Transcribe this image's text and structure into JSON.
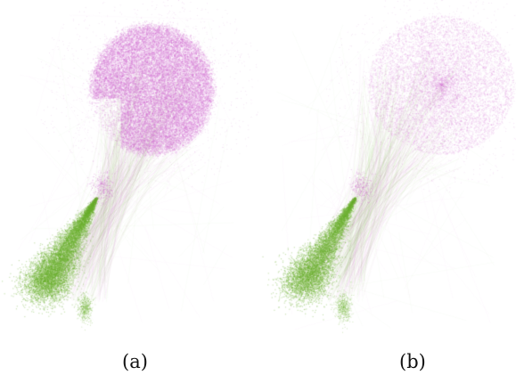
{
  "figure": {
    "panels": [
      {
        "caption": "(a)",
        "style": "dense"
      },
      {
        "caption": "(b)",
        "style": "sparse"
      }
    ]
  },
  "colors": {
    "background": "#ffffff",
    "community_1": "#cc66cc",
    "community_2": "#6ab02e"
  }
}
